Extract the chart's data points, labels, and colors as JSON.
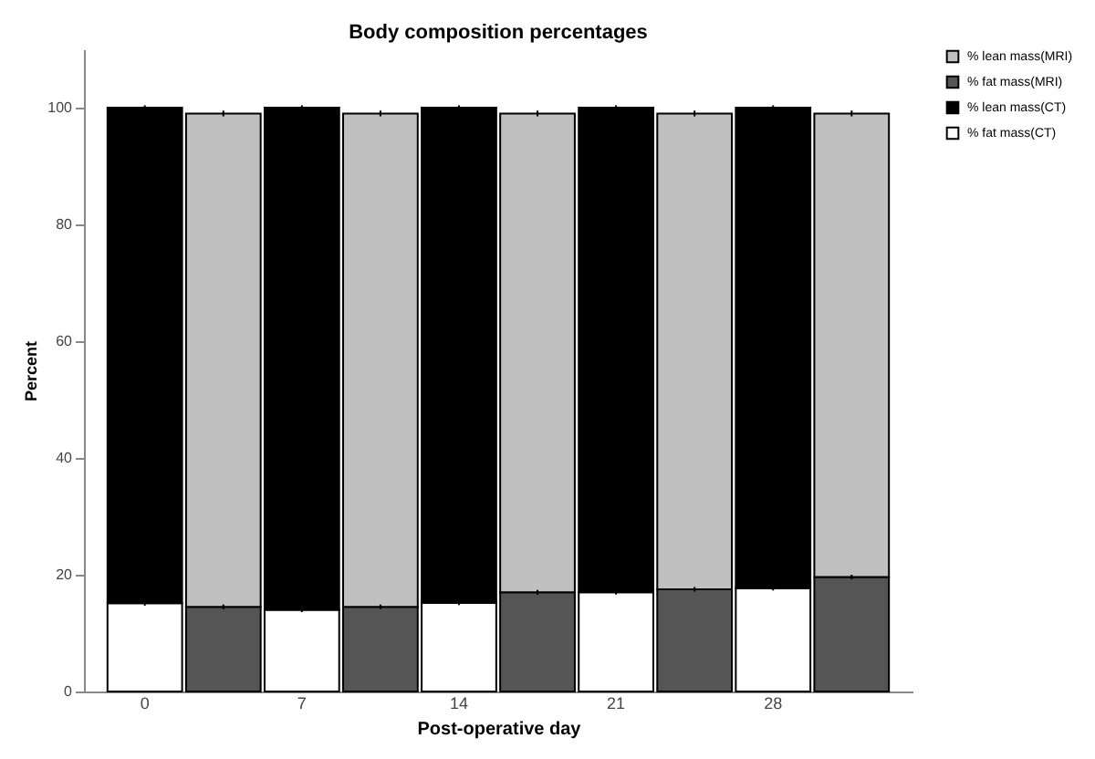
{
  "chart_data": {
    "type": "bar",
    "title": "Body composition percentages",
    "xlabel": "Post-operative day",
    "ylabel": "Percent",
    "categories": [
      "0",
      null,
      "7",
      null,
      "14",
      null,
      "21",
      null,
      "28",
      null
    ],
    "stacked": true,
    "ylim": [
      0,
      110
    ],
    "yticks": [
      0,
      20,
      40,
      60,
      80,
      100
    ],
    "legend": "right",
    "grid": false,
    "series": [
      {
        "name": "% fat mass(CT)",
        "color": "#ffffff",
        "values": [
          15.1,
          null,
          14.0,
          null,
          15.2,
          null,
          17.0,
          null,
          17.7,
          null
        ],
        "errors": [
          0.4,
          null,
          0.4,
          null,
          0.4,
          null,
          0.4,
          null,
          0.4,
          null
        ]
      },
      {
        "name": "% lean mass(CT)",
        "color": "#000000",
        "values": [
          84.9,
          null,
          86.0,
          null,
          84.8,
          null,
          83.0,
          null,
          82.3,
          null
        ],
        "errors": [
          0.4,
          null,
          0.4,
          null,
          0.4,
          null,
          0.4,
          null,
          0.4,
          null
        ]
      },
      {
        "name": "% fat mass(MRI)",
        "color": "#555555",
        "values": [
          null,
          14.5,
          null,
          14.5,
          null,
          17.0,
          null,
          17.5,
          null,
          19.6
        ],
        "errors": [
          null,
          0.4,
          null,
          0.4,
          null,
          0.4,
          null,
          0.4,
          null,
          0.4
        ]
      },
      {
        "name": "% lean mass(MRI)",
        "color": "#c0c0c0",
        "values": [
          null,
          84.5,
          null,
          84.5,
          null,
          82.0,
          null,
          81.5,
          null,
          79.4
        ],
        "errors": [
          null,
          0.5,
          null,
          0.5,
          null,
          0.5,
          null,
          0.5,
          null,
          0.5
        ]
      }
    ]
  }
}
